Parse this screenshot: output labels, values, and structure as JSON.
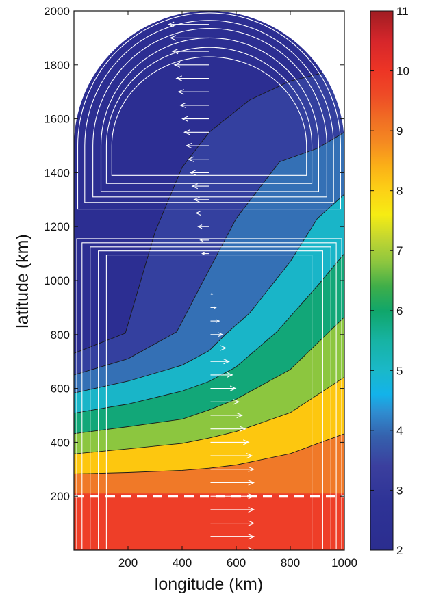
{
  "chart_data": {
    "type": "heatmap",
    "title": "",
    "xlabel": "longitude (km)",
    "ylabel": "latitude (km)",
    "xlim": [
      0,
      1000
    ],
    "ylim": [
      0,
      2000
    ],
    "x_ticks": [
      200,
      400,
      600,
      800,
      1000
    ],
    "y_ticks": [
      200,
      400,
      600,
      800,
      1000,
      1200,
      1400,
      1600,
      1800,
      2000
    ],
    "x_tick_labels": [
      "200",
      "400",
      "600",
      "800",
      "1000"
    ],
    "y_tick_labels": [
      "200",
      "400",
      "600",
      "800",
      "1000",
      "1200",
      "1400",
      "1600",
      "1800",
      "2000"
    ],
    "colorbar": {
      "range": [
        2,
        11
      ],
      "ticks": [
        2,
        3,
        4,
        5,
        6,
        7,
        8,
        9,
        10,
        11
      ],
      "tick_labels": [
        "2",
        "3",
        "4",
        "5",
        "6",
        "7",
        "8",
        "9",
        "10",
        "11"
      ]
    },
    "contour_levels": [
      3,
      4,
      5,
      6,
      7,
      8,
      9,
      10
    ],
    "dashed_line_latitude": 200,
    "divider_longitude": 500,
    "basin_top_semicircle_center_latitude": 1500,
    "basin_top_semicircle_radius": 500,
    "colors": {
      "band_2_3": "#2c2e92",
      "band_3_4": "#34409f",
      "band_4_5": "#3470b5",
      "band_5_6": "#19b5c8",
      "band_6_7": "#12a778",
      "band_7_8": "#8cc63f",
      "band_8_9": "#fdc70f",
      "band_9_10": "#f07928",
      "band_10_11": "#ee3e28",
      "streamlines": "#ffffff",
      "arrows": "#ffffff",
      "contours": "#1a1a1a",
      "dashed_line": "#ffffff"
    }
  }
}
